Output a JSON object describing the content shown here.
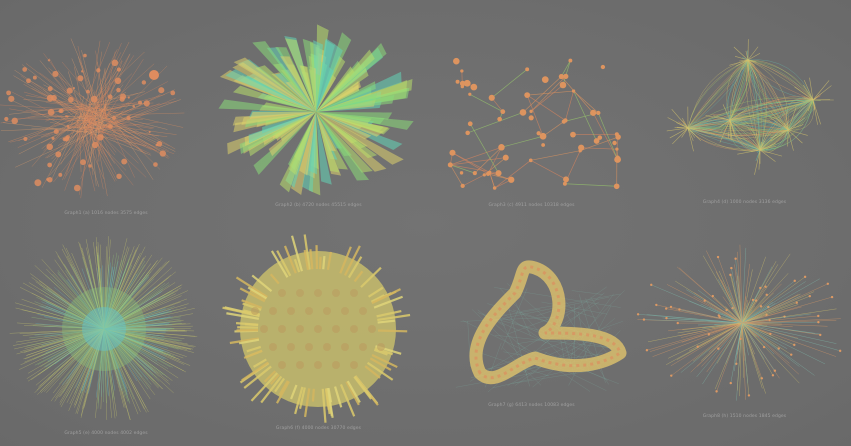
{
  "graphs": [
    {
      "id": "g1",
      "caption": "Graph1 (a) 1016 nodes 3575 edges",
      "style": "starburst",
      "palette": [
        "#f3935a",
        "#f7a56a",
        "#e9875a"
      ]
    },
    {
      "id": "g2",
      "caption": "Graph2 (b) 4720 nodes 45515 edges",
      "style": "ribbon",
      "palette": [
        "#8ef07a",
        "#c6f46a",
        "#5fe7c4",
        "#f2e36a"
      ]
    },
    {
      "id": "g3",
      "caption": "Graph3 (c) 4911 nodes 10318 edges",
      "style": "mesh",
      "palette": [
        "#f39a5a",
        "#e9875a",
        "#9fd86a"
      ]
    },
    {
      "id": "g4",
      "caption": "Graph4 (d) 1000 nodes 3136 edges",
      "style": "hubs",
      "palette": [
        "#9fd86a",
        "#5fc9b8",
        "#e8d36a",
        "#f6a260"
      ]
    },
    {
      "id": "g5",
      "caption": "Graph5 (e) 4000 nodes 4002 edges",
      "style": "radial",
      "palette": [
        "#e6e36a",
        "#9fe07a",
        "#5fd1d9",
        "#f0c86a"
      ]
    },
    {
      "id": "g6",
      "caption": "Graph6 (f) 4000 nodes 30770 edges",
      "style": "dense",
      "palette": [
        "#f1dc6a",
        "#e9c55a",
        "#f6e97a"
      ]
    },
    {
      "id": "g7",
      "caption": "Graph7 (g) 6413 nodes 10083 edges",
      "style": "tube",
      "palette": [
        "#f6d36a",
        "#f2935a",
        "#9fd86a"
      ]
    },
    {
      "id": "g8",
      "caption": "Graph8 (h) 1510 nodes 1845 edges",
      "style": "butterfly",
      "palette": [
        "#e6d36a",
        "#7fc9b8",
        "#f2a060"
      ]
    }
  ]
}
